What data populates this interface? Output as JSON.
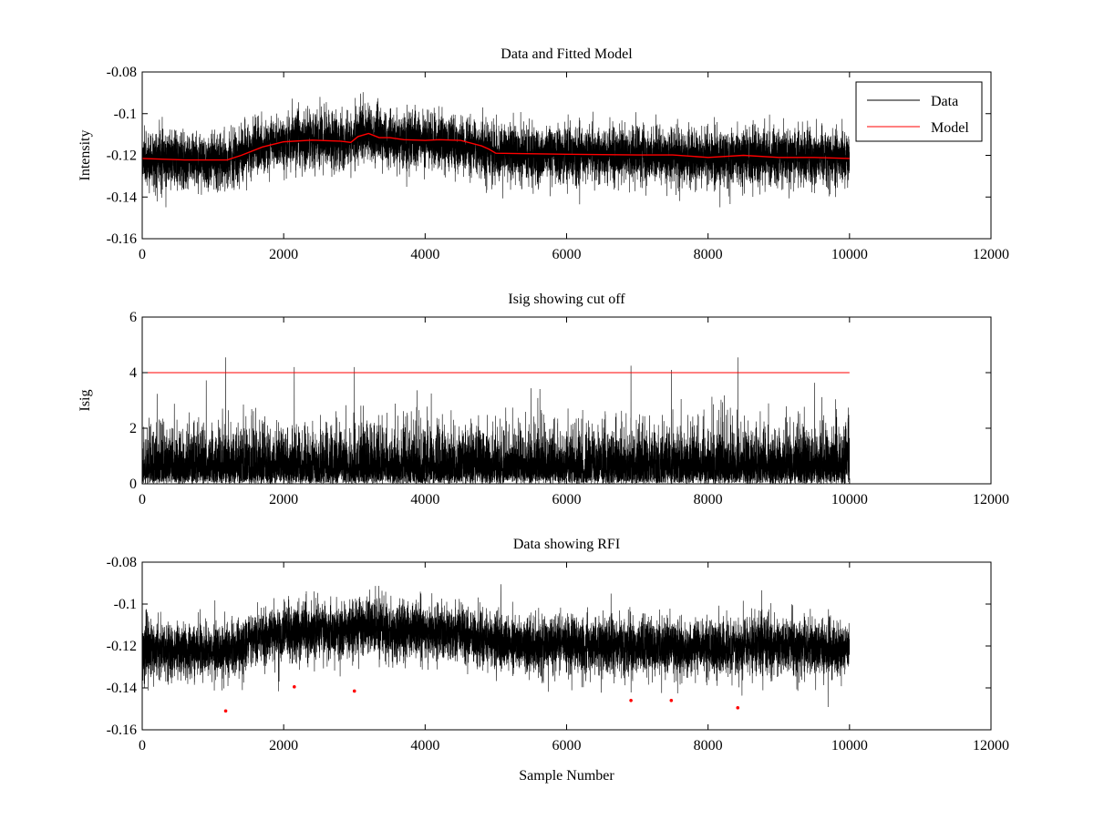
{
  "chart_data": [
    {
      "type": "line",
      "title": "Data and Fitted Model",
      "xlabel": "",
      "ylabel": "Intensity",
      "xlim": [
        0,
        12000
      ],
      "ylim": [
        -0.16,
        -0.08
      ],
      "xticks": [
        0,
        2000,
        4000,
        6000,
        8000,
        10000,
        12000
      ],
      "xtick_labels": [
        "0",
        "2000",
        "4000",
        "6000",
        "8000",
        "10000",
        "12000"
      ],
      "yticks": [
        -0.16,
        -0.14,
        -0.12,
        -0.1,
        -0.08
      ],
      "ytick_labels": [
        "-0.16",
        "-0.14",
        "-0.12",
        "-0.1",
        "-0.08"
      ],
      "grid": false,
      "legend": {
        "position": "top-right",
        "entries": [
          {
            "name": "Data",
            "color": "#000000"
          },
          {
            "name": "Model",
            "color": "#ff0000"
          }
        ]
      },
      "series": [
        {
          "name": "Data",
          "color": "#000000",
          "kind": "noisy_signal",
          "n_samples": 10000,
          "noise_sd": 0.0065,
          "baseline_x": [
            0,
            1200,
            1600,
            2300,
            2900,
            3100,
            3500,
            4000,
            4700,
            4950,
            6000,
            7000,
            8000,
            8700,
            10000
          ],
          "baseline_y": [
            -0.1215,
            -0.1225,
            -0.116,
            -0.113,
            -0.1135,
            -0.1105,
            -0.1125,
            -0.113,
            -0.1155,
            -0.119,
            -0.1195,
            -0.12,
            -0.121,
            -0.12,
            -0.1215
          ]
        },
        {
          "name": "Model",
          "color": "#ff0000",
          "x": [
            0,
            600,
            1000,
            1200,
            1400,
            1700,
            2000,
            2400,
            2800,
            2950,
            3050,
            3200,
            3350,
            3500,
            3700,
            4000,
            4200,
            4500,
            4800,
            4900,
            5000,
            6000,
            7000,
            7500,
            8000,
            8500,
            9000,
            9500,
            10000
          ],
          "y": [
            -0.1215,
            -0.1222,
            -0.1222,
            -0.1222,
            -0.12,
            -0.116,
            -0.1135,
            -0.1127,
            -0.1132,
            -0.1138,
            -0.111,
            -0.1095,
            -0.1115,
            -0.1115,
            -0.1125,
            -0.1128,
            -0.1125,
            -0.1128,
            -0.1155,
            -0.117,
            -0.119,
            -0.1195,
            -0.1198,
            -0.1198,
            -0.121,
            -0.12,
            -0.121,
            -0.121,
            -0.1215
          ]
        }
      ]
    },
    {
      "type": "line",
      "title": "Isig showing cut off",
      "xlabel": "",
      "ylabel": "Isig",
      "xlim": [
        0,
        12000
      ],
      "ylim": [
        0,
        6
      ],
      "xticks": [
        0,
        2000,
        4000,
        6000,
        8000,
        10000,
        12000
      ],
      "xtick_labels": [
        "0",
        "2000",
        "4000",
        "6000",
        "8000",
        "10000",
        "12000"
      ],
      "yticks": [
        0,
        2,
        4,
        6
      ],
      "ytick_labels": [
        "0",
        "2",
        "4",
        "6"
      ],
      "grid": false,
      "series": [
        {
          "name": "Isig",
          "color": "#000000",
          "kind": "abs_noise",
          "n_samples": 10000,
          "scale": 0.9,
          "spike_x": [
            1180,
            2150,
            3000,
            6910,
            7480,
            8420
          ],
          "spike_y": [
            4.55,
            4.2,
            4.2,
            4.25,
            4.1,
            4.55
          ]
        },
        {
          "name": "Cut off",
          "color": "#ff0000",
          "x": [
            0,
            10000
          ],
          "y": [
            4,
            4
          ]
        }
      ]
    },
    {
      "type": "line",
      "title": "Data showing RFI",
      "xlabel": "Sample Number",
      "ylabel": "",
      "xlim": [
        0,
        12000
      ],
      "ylim": [
        -0.16,
        -0.08
      ],
      "xticks": [
        0,
        2000,
        4000,
        6000,
        8000,
        10000,
        12000
      ],
      "xtick_labels": [
        "0",
        "2000",
        "4000",
        "6000",
        "8000",
        "10000",
        "12000"
      ],
      "yticks": [
        -0.16,
        -0.14,
        -0.12,
        -0.1,
        -0.08
      ],
      "ytick_labels": [
        "-0.16",
        "-0.14",
        "-0.12",
        "-0.1",
        "-0.08"
      ],
      "grid": false,
      "series": [
        {
          "name": "Data",
          "color": "#000000",
          "kind": "noisy_signal",
          "n_samples": 10000,
          "noise_sd": 0.0065,
          "baseline_x": [
            0,
            1200,
            1600,
            2300,
            2900,
            3100,
            3500,
            4000,
            4700,
            4950,
            6000,
            7000,
            8000,
            8700,
            10000
          ],
          "baseline_y": [
            -0.1215,
            -0.1225,
            -0.116,
            -0.113,
            -0.1135,
            -0.1105,
            -0.1125,
            -0.113,
            -0.1155,
            -0.119,
            -0.1195,
            -0.12,
            -0.121,
            -0.12,
            -0.1215
          ]
        },
        {
          "name": "RFI",
          "color": "#ff0000",
          "kind": "markers",
          "x": [
            1180,
            2150,
            3000,
            6910,
            7480,
            8420
          ],
          "y": [
            -0.151,
            -0.1395,
            -0.1415,
            -0.146,
            -0.146,
            -0.1495
          ]
        }
      ]
    }
  ]
}
